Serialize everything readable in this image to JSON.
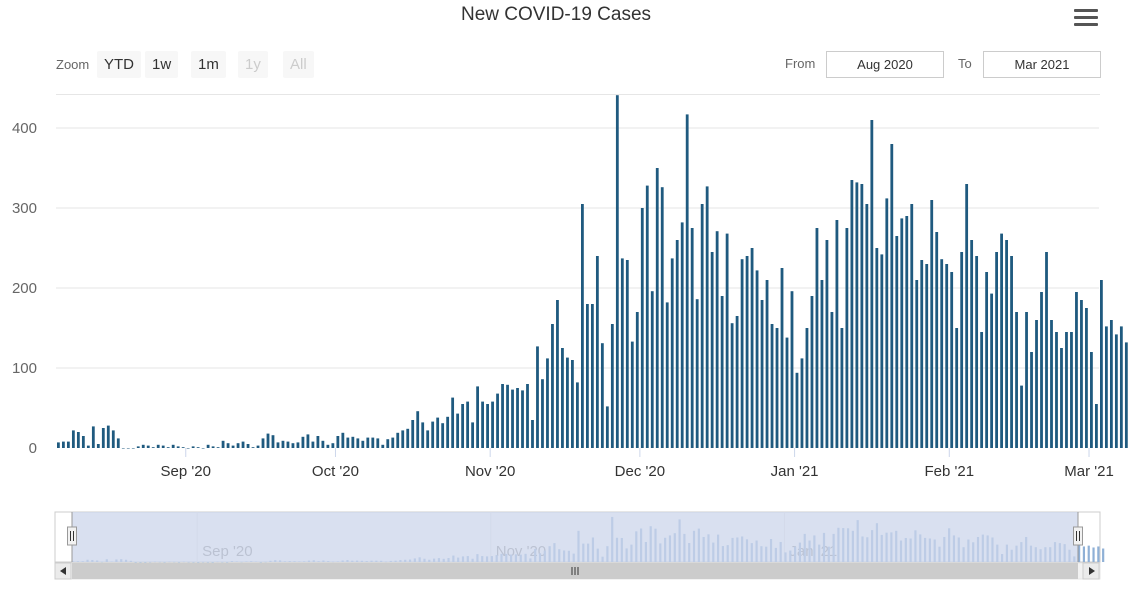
{
  "header": {
    "title": "New COVID-19 Cases",
    "menu_icon": "hamburger-menu-icon"
  },
  "range_selector": {
    "zoom_label": "Zoom",
    "buttons": [
      {
        "label": "YTD",
        "enabled": true
      },
      {
        "label": "1w",
        "enabled": true
      },
      {
        "label": "1m",
        "enabled": true
      },
      {
        "label": "1y",
        "enabled": false
      },
      {
        "label": "All",
        "enabled": false
      }
    ],
    "from_label": "From",
    "from_value": "Aug 2020",
    "to_label": "To",
    "to_value": "Mar 2021"
  },
  "colors": {
    "bar": "#1f5a7f",
    "navigator_mask": "#ccd6eb",
    "navigator_bar": "#8fb0d6",
    "grid": "#e6e6e6"
  },
  "chart_data": {
    "type": "bar",
    "title": "New COVID-19 Cases",
    "x_start": "2020-08-06",
    "x_end": "2021-03-03",
    "yticks": [
      0,
      100,
      200,
      300,
      400
    ],
    "ylim": [
      0,
      440
    ],
    "xticks": [
      {
        "label": "Sep '20",
        "date": "2020-09-01"
      },
      {
        "label": "Oct '20",
        "date": "2020-10-01"
      },
      {
        "label": "Nov '20",
        "date": "2020-11-01"
      },
      {
        "label": "Dec '20",
        "date": "2020-12-01"
      },
      {
        "label": "Jan '21",
        "date": "2021-01-01"
      },
      {
        "label": "Feb '21",
        "date": "2021-02-01"
      },
      {
        "label": "Mar '21",
        "date": "2021-03-01"
      }
    ],
    "navigator_xticks": [
      {
        "label": "Sep '20",
        "date": "2020-09-01"
      },
      {
        "label": "Nov '20",
        "date": "2020-11-01"
      },
      {
        "label": "Jan '21",
        "date": "2021-01-01"
      }
    ],
    "values": [
      7,
      8,
      8,
      22,
      20,
      15,
      3,
      27,
      5,
      25,
      28,
      22,
      12,
      0,
      0,
      0,
      2,
      4,
      3,
      1,
      4,
      3,
      1,
      4,
      2,
      1,
      0,
      2,
      1,
      0,
      4,
      2,
      1,
      9,
      6,
      3,
      6,
      8,
      5,
      1,
      3,
      12,
      18,
      16,
      7,
      9,
      8,
      6,
      7,
      14,
      17,
      8,
      15,
      9,
      4,
      6,
      15,
      19,
      13,
      14,
      12,
      9,
      13,
      13,
      12,
      4,
      11,
      13,
      19,
      22,
      24,
      35,
      46,
      32,
      22,
      33,
      38,
      31,
      39,
      63,
      43,
      55,
      58,
      32,
      77,
      58,
      55,
      58,
      68,
      80,
      79,
      73,
      75,
      72,
      80,
      35,
      127,
      86,
      112,
      155,
      185,
      125,
      113,
      110,
      82,
      305,
      180,
      180,
      240,
      131,
      52,
      155,
      441,
      237,
      235,
      133,
      170,
      300,
      328,
      196,
      350,
      326,
      182,
      237,
      260,
      282,
      417,
      275,
      186,
      305,
      327,
      245,
      271,
      190,
      268,
      156,
      165,
      236,
      240,
      250,
      222,
      185,
      210,
      155,
      150,
      225,
      138,
      196,
      94,
      112,
      150,
      190,
      275,
      210,
      260,
      170,
      285,
      150,
      275,
      335,
      332,
      330,
      305,
      410,
      250,
      242,
      312,
      380,
      265,
      287,
      290,
      305,
      210,
      235,
      230,
      310,
      270,
      236,
      230,
      220,
      150,
      245,
      330,
      260,
      240,
      145,
      220,
      193,
      245,
      268,
      260,
      240,
      170,
      78,
      170,
      120,
      160,
      195,
      245,
      160,
      145,
      125,
      145,
      145,
      195,
      185,
      175,
      120,
      55,
      210,
      152,
      160,
      142,
      152,
      132
    ]
  },
  "navigator": {
    "left_handle_icon": "grip-icon",
    "right_handle_icon": "grip-icon",
    "scroll_left_icon": "arrow-left-icon",
    "scroll_right_icon": "arrow-right-icon",
    "scroll_grip_icon": "grip-icon"
  }
}
